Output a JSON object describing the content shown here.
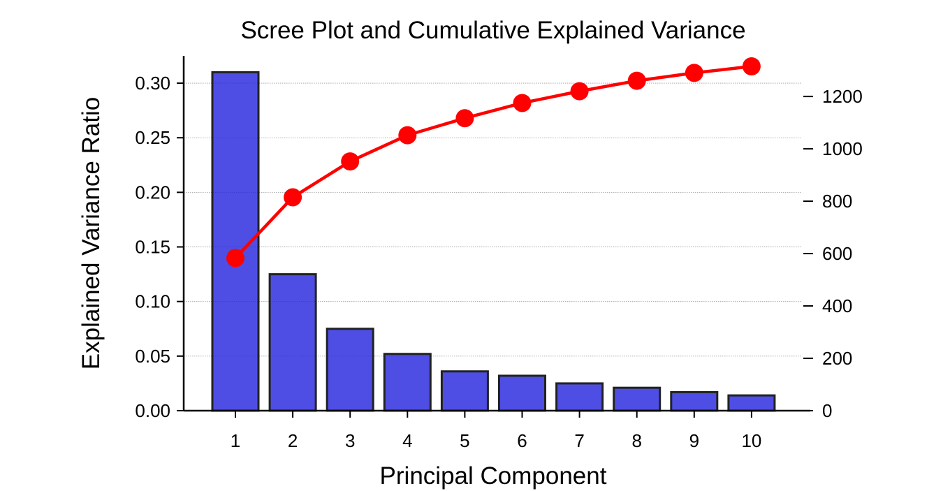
{
  "chart_data": {
    "type": "bar",
    "title": "Scree Plot and Cumulative Explained Variance",
    "xlabel": "Principal Component",
    "ylabel": "Explained Variance Ratio",
    "y2label": "",
    "categories": [
      "1",
      "2",
      "3",
      "4",
      "5",
      "6",
      "7",
      "8",
      "9",
      "10"
    ],
    "bar_series": {
      "name": "",
      "values": [
        0.31,
        0.125,
        0.075,
        0.052,
        0.036,
        0.032,
        0.025,
        0.021,
        0.017,
        0.014
      ],
      "color": "#2222dd"
    },
    "line_series": {
      "name": "",
      "axis": "right",
      "values": [
        583,
        815,
        952,
        1052,
        1117,
        1175,
        1220,
        1260,
        1290,
        1315
      ],
      "color": "#ff0000"
    },
    "ylim": [
      0,
      0.325
    ],
    "y2lim": [
      0,
      1355
    ],
    "yticks": [
      "0.00",
      "0.05",
      "0.10",
      "0.15",
      "0.20",
      "0.25",
      "0.30"
    ],
    "y2ticks": [
      "0",
      "200",
      "400",
      "600",
      "800",
      "1000",
      "1200"
    ],
    "grid": "horizontal dotted",
    "legend": "none"
  }
}
